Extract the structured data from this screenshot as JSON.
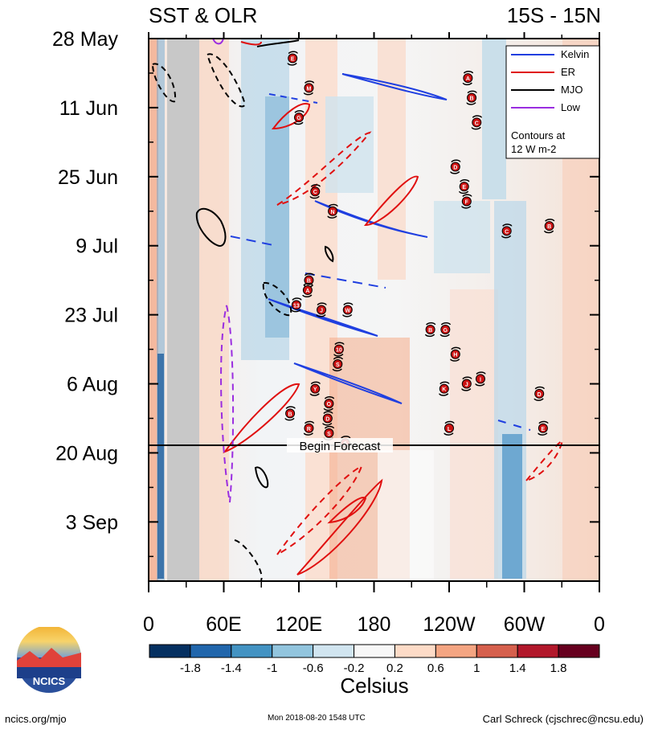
{
  "title_left": "SST & OLR",
  "title_right": "15S - 15N",
  "chart_data": {
    "type": "heatmap",
    "description_note": "Hovmoller of SST anomaly (shading) with OLR filtered-wave contours",
    "xlabel_ticks": [
      "0",
      "60E",
      "120E",
      "180",
      "120W",
      "60W",
      "0"
    ],
    "x_tick_lon": [
      0,
      60,
      120,
      180,
      240,
      300,
      360
    ],
    "y_tick_labels": [
      "28 May",
      "11 Jun",
      "25 Jun",
      "9 Jul",
      "23 Jul",
      "6 Aug",
      "20 Aug",
      "3 Sep"
    ],
    "y_tick_day": [
      0,
      14,
      28,
      42,
      56,
      70,
      84,
      98
    ],
    "y_range_days": [
      0,
      110
    ],
    "forecast_start_day": 84,
    "forecast_label": "Begin Forecast",
    "colorbar": {
      "unit": "Celsius",
      "labels": [
        "-1.8",
        "-1.4",
        "-1",
        "-0.6",
        "-0.2",
        "0.2",
        "0.6",
        "1",
        "1.4",
        "1.8"
      ],
      "colors": [
        "#053061",
        "#2166ac",
        "#4393c3",
        "#92c5de",
        "#d1e5f0",
        "#f7f7f7",
        "#fddbc7",
        "#f4a582",
        "#d6604d",
        "#b2182b",
        "#67001f"
      ]
    },
    "legend": {
      "entries": [
        {
          "name": "Kelvin",
          "color": "#1f3fe0"
        },
        {
          "name": "ER",
          "color": "#e01010"
        },
        {
          "name": "MJO",
          "color": "#000000"
        },
        {
          "name": "Low",
          "color": "#9a2de0"
        }
      ],
      "note_line1": "Contours at",
      "note_line2": "12 W m-2",
      "location": "top-right"
    },
    "storm_markers": [
      {
        "label": "E",
        "lon": 115,
        "day": 4
      },
      {
        "label": "M",
        "lon": 128,
        "day": 10
      },
      {
        "label": "G",
        "lon": 120,
        "day": 16
      },
      {
        "label": "A",
        "lon": 255,
        "day": 8
      },
      {
        "label": "B",
        "lon": 258,
        "day": 12
      },
      {
        "label": "C",
        "lon": 262,
        "day": 17
      },
      {
        "label": "D",
        "lon": 245,
        "day": 26
      },
      {
        "label": "E",
        "lon": 252,
        "day": 30
      },
      {
        "label": "F",
        "lon": 254,
        "day": 33
      },
      {
        "label": "C",
        "lon": 133,
        "day": 31
      },
      {
        "label": "N",
        "lon": 147,
        "day": 35
      },
      {
        "label": "C",
        "lon": 286,
        "day": 39
      },
      {
        "label": "B",
        "lon": 320,
        "day": 38
      },
      {
        "label": "B",
        "lon": 128,
        "day": 49
      },
      {
        "label": "A",
        "lon": 127,
        "day": 51
      },
      {
        "label": "13",
        "lon": 118,
        "day": 54
      },
      {
        "label": "J",
        "lon": 138,
        "day": 55
      },
      {
        "label": "W",
        "lon": 159,
        "day": 55
      },
      {
        "label": "B",
        "lon": 225,
        "day": 59
      },
      {
        "label": "G",
        "lon": 237,
        "day": 59
      },
      {
        "label": "10",
        "lon": 152,
        "day": 63
      },
      {
        "label": "H",
        "lon": 245,
        "day": 64
      },
      {
        "label": "S",
        "lon": 151,
        "day": 66
      },
      {
        "label": "Y",
        "lon": 133,
        "day": 71
      },
      {
        "label": "K",
        "lon": 236,
        "day": 71
      },
      {
        "label": "J",
        "lon": 254,
        "day": 70
      },
      {
        "label": "I",
        "lon": 265,
        "day": 69
      },
      {
        "label": "D",
        "lon": 312,
        "day": 72
      },
      {
        "label": "B",
        "lon": 113,
        "day": 76
      },
      {
        "label": "O",
        "lon": 144,
        "day": 74
      },
      {
        "label": "D",
        "lon": 143,
        "day": 77
      },
      {
        "label": "R",
        "lon": 128,
        "day": 79
      },
      {
        "label": "S",
        "lon": 144,
        "day": 80
      },
      {
        "label": "L",
        "lon": 240,
        "day": 79
      },
      {
        "label": "E",
        "lon": 315,
        "day": 79
      },
      {
        "label": "6",
        "lon": 157,
        "day": 82
      }
    ]
  },
  "footer": {
    "left": "ncics.org/mjo",
    "center": "Mon 2018-08-20 1548 UTC",
    "right": "Carl Schreck (cjschrec@ncsu.edu)"
  },
  "logo": {
    "text": "NCICS"
  }
}
